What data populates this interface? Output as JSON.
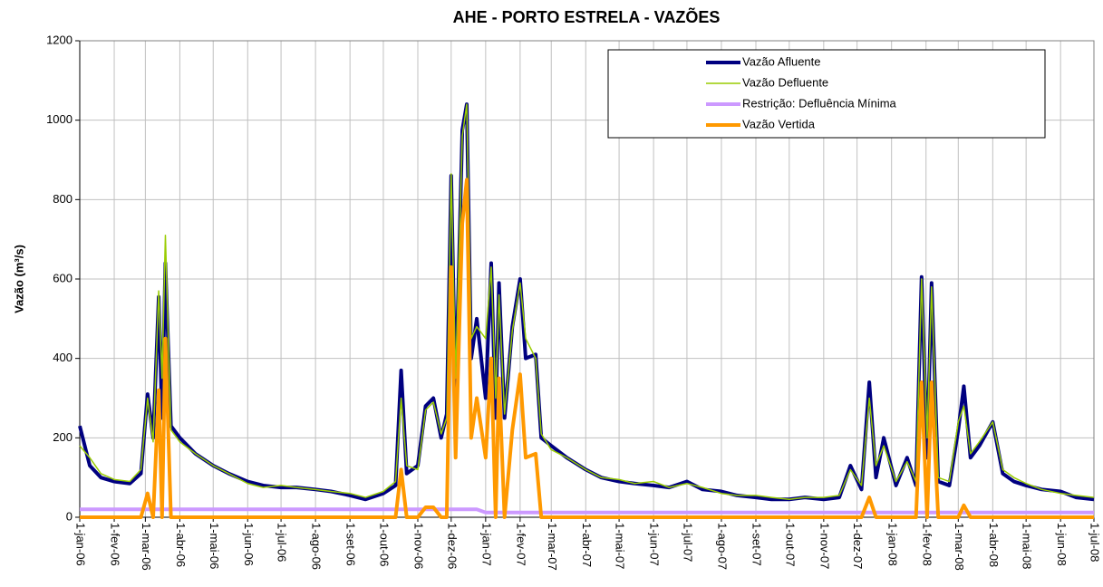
{
  "chart_data": {
    "type": "line",
    "title": "AHE - PORTO ESTRELA - VAZÕES",
    "y_label": "Vazão (m³/s)",
    "x": [
      "2006-01-01",
      "2006-01-10",
      "2006-01-20",
      "2006-02-01",
      "2006-02-15",
      "2006-02-25",
      "2006-03-03",
      "2006-03-08",
      "2006-03-13",
      "2006-03-16",
      "2006-03-19",
      "2006-03-24",
      "2006-04-01",
      "2006-04-15",
      "2006-05-01",
      "2006-05-15",
      "2006-06-01",
      "2006-06-15",
      "2006-07-01",
      "2006-07-15",
      "2006-08-01",
      "2006-08-15",
      "2006-09-01",
      "2006-09-15",
      "2006-10-01",
      "2006-10-12",
      "2006-10-17",
      "2006-10-22",
      "2006-11-01",
      "2006-11-08",
      "2006-11-15",
      "2006-11-22",
      "2006-11-27",
      "2006-12-01",
      "2006-12-05",
      "2006-12-11",
      "2006-12-15",
      "2006-12-19",
      "2006-12-24",
      "2007-01-01",
      "2007-01-06",
      "2007-01-10",
      "2007-01-13",
      "2007-01-18",
      "2007-01-25",
      "2007-02-01",
      "2007-02-06",
      "2007-02-15",
      "2007-02-20",
      "2007-03-01",
      "2007-03-15",
      "2007-04-01",
      "2007-04-15",
      "2007-05-01",
      "2007-05-15",
      "2007-06-01",
      "2007-06-15",
      "2007-07-01",
      "2007-07-15",
      "2007-08-01",
      "2007-08-15",
      "2007-09-01",
      "2007-09-15",
      "2007-10-01",
      "2007-10-15",
      "2007-11-01",
      "2007-11-15",
      "2007-11-25",
      "2007-12-05",
      "2007-12-12",
      "2007-12-18",
      "2007-12-25",
      "2008-01-05",
      "2008-01-15",
      "2008-01-23",
      "2008-01-28",
      "2008-02-02",
      "2008-02-06",
      "2008-02-12",
      "2008-02-22",
      "2008-03-01",
      "2008-03-06",
      "2008-03-12",
      "2008-03-20",
      "2008-04-01",
      "2008-04-10",
      "2008-04-20",
      "2008-05-01",
      "2008-05-15",
      "2008-06-01",
      "2008-06-15",
      "2008-07-01"
    ],
    "series": [
      {
        "name": "Vazão Afluente",
        "color": "#000080",
        "values": [
          230,
          130,
          100,
          90,
          85,
          110,
          310,
          200,
          555,
          250,
          640,
          230,
          200,
          160,
          130,
          110,
          90,
          80,
          75,
          75,
          70,
          65,
          55,
          45,
          60,
          80,
          370,
          110,
          130,
          280,
          300,
          200,
          260,
          860,
          300,
          975,
          1040,
          400,
          500,
          300,
          640,
          250,
          590,
          250,
          480,
          600,
          400,
          410,
          200,
          180,
          150,
          120,
          100,
          90,
          85,
          80,
          75,
          90,
          70,
          65,
          55,
          50,
          45,
          45,
          50,
          45,
          50,
          130,
          70,
          340,
          100,
          200,
          80,
          150,
          80,
          605,
          150,
          590,
          90,
          80,
          220,
          330,
          150,
          180,
          240,
          110,
          90,
          80,
          70,
          65,
          50,
          45
        ]
      },
      {
        "name": "Vazão Defluente",
        "color": "#99cc00",
        "values": [
          180,
          150,
          110,
          95,
          90,
          120,
          300,
          190,
          570,
          350,
          710,
          220,
          190,
          160,
          130,
          110,
          85,
          75,
          80,
          75,
          70,
          65,
          60,
          50,
          65,
          90,
          300,
          130,
          120,
          270,
          290,
          210,
          250,
          865,
          350,
          960,
          1040,
          450,
          480,
          450,
          630,
          300,
          560,
          260,
          470,
          590,
          450,
          400,
          210,
          170,
          150,
          120,
          100,
          95,
          85,
          90,
          75,
          85,
          75,
          60,
          55,
          55,
          50,
          45,
          50,
          50,
          55,
          120,
          80,
          300,
          130,
          180,
          90,
          140,
          90,
          600,
          200,
          580,
          100,
          90,
          240,
          280,
          160,
          190,
          240,
          120,
          100,
          85,
          70,
          60,
          55,
          50
        ]
      },
      {
        "name": "Restrição: Defluência Mínima",
        "color": "#cc99ff",
        "values": [
          20,
          20,
          20,
          20,
          20,
          20,
          20,
          20,
          20,
          20,
          20,
          20,
          20,
          20,
          20,
          20,
          20,
          20,
          20,
          20,
          20,
          20,
          20,
          20,
          20,
          20,
          20,
          20,
          20,
          20,
          20,
          20,
          20,
          20,
          20,
          20,
          20,
          20,
          20,
          12,
          12,
          12,
          12,
          12,
          12,
          12,
          12,
          12,
          12,
          12,
          12,
          12,
          12,
          12,
          12,
          12,
          12,
          12,
          12,
          12,
          12,
          12,
          12,
          12,
          12,
          12,
          12,
          12,
          12,
          12,
          12,
          12,
          12,
          12,
          12,
          12,
          12,
          12,
          12,
          12,
          12,
          12,
          12,
          12,
          12,
          12,
          12,
          12,
          12,
          12,
          12,
          12
        ]
      },
      {
        "name": "Vazão Vertida",
        "color": "#ff9900",
        "values": [
          0,
          0,
          0,
          0,
          0,
          0,
          60,
          0,
          320,
          0,
          450,
          0,
          0,
          0,
          0,
          0,
          0,
          0,
          0,
          0,
          0,
          0,
          0,
          0,
          0,
          0,
          120,
          0,
          0,
          25,
          25,
          0,
          0,
          630,
          150,
          740,
          850,
          200,
          300,
          150,
          400,
          0,
          350,
          0,
          220,
          360,
          150,
          160,
          0,
          0,
          0,
          0,
          0,
          0,
          0,
          0,
          0,
          0,
          0,
          0,
          0,
          0,
          0,
          0,
          0,
          0,
          0,
          0,
          0,
          50,
          0,
          0,
          0,
          0,
          0,
          340,
          0,
          340,
          0,
          0,
          0,
          30,
          0,
          0,
          0,
          0,
          0,
          0,
          0,
          0,
          0,
          0
        ]
      }
    ],
    "xlim": [
      "2006-01-01",
      "2008-07-01"
    ],
    "xticks": [
      {
        "value": "2006-01-01",
        "label": "1-jan-06"
      },
      {
        "value": "2006-02-01",
        "label": "1-fev-06"
      },
      {
        "value": "2006-03-01",
        "label": "1-mar-06"
      },
      {
        "value": "2006-04-01",
        "label": "1-abr-06"
      },
      {
        "value": "2006-05-01",
        "label": "1-mai-06"
      },
      {
        "value": "2006-06-01",
        "label": "1-jun-06"
      },
      {
        "value": "2006-07-01",
        "label": "1-jul-06"
      },
      {
        "value": "2006-08-01",
        "label": "1-ago-06"
      },
      {
        "value": "2006-09-01",
        "label": "1-set-06"
      },
      {
        "value": "2006-10-01",
        "label": "1-out-06"
      },
      {
        "value": "2006-11-01",
        "label": "1-nov-06"
      },
      {
        "value": "2006-12-01",
        "label": "1-dez-06"
      },
      {
        "value": "2007-01-01",
        "label": "1-jan-07"
      },
      {
        "value": "2007-02-01",
        "label": "1-fev-07"
      },
      {
        "value": "2007-03-01",
        "label": "1-mar-07"
      },
      {
        "value": "2007-04-01",
        "label": "1-abr-07"
      },
      {
        "value": "2007-05-01",
        "label": "1-mai-07"
      },
      {
        "value": "2007-06-01",
        "label": "1-jun-07"
      },
      {
        "value": "2007-07-01",
        "label": "1-jul-07"
      },
      {
        "value": "2007-08-01",
        "label": "1-ago-07"
      },
      {
        "value": "2007-09-01",
        "label": "1-set-07"
      },
      {
        "value": "2007-10-01",
        "label": "1-out-07"
      },
      {
        "value": "2007-11-01",
        "label": "1-nov-07"
      },
      {
        "value": "2007-12-01",
        "label": "1-dez-07"
      },
      {
        "value": "2008-01-01",
        "label": "1-jan-08"
      },
      {
        "value": "2008-02-01",
        "label": "1-fev-08"
      },
      {
        "value": "2008-03-01",
        "label": "1-mar-08"
      },
      {
        "value": "2008-04-01",
        "label": "1-abr-08"
      },
      {
        "value": "2008-05-01",
        "label": "1-mai-08"
      },
      {
        "value": "2008-06-01",
        "label": "1-jun-08"
      },
      {
        "value": "2008-07-01",
        "label": "1-jul-08"
      }
    ],
    "ylim": [
      0,
      1200
    ],
    "yticks": [
      0,
      200,
      400,
      600,
      800,
      1000,
      1200
    ],
    "grid": true,
    "legend": "upper right"
  }
}
